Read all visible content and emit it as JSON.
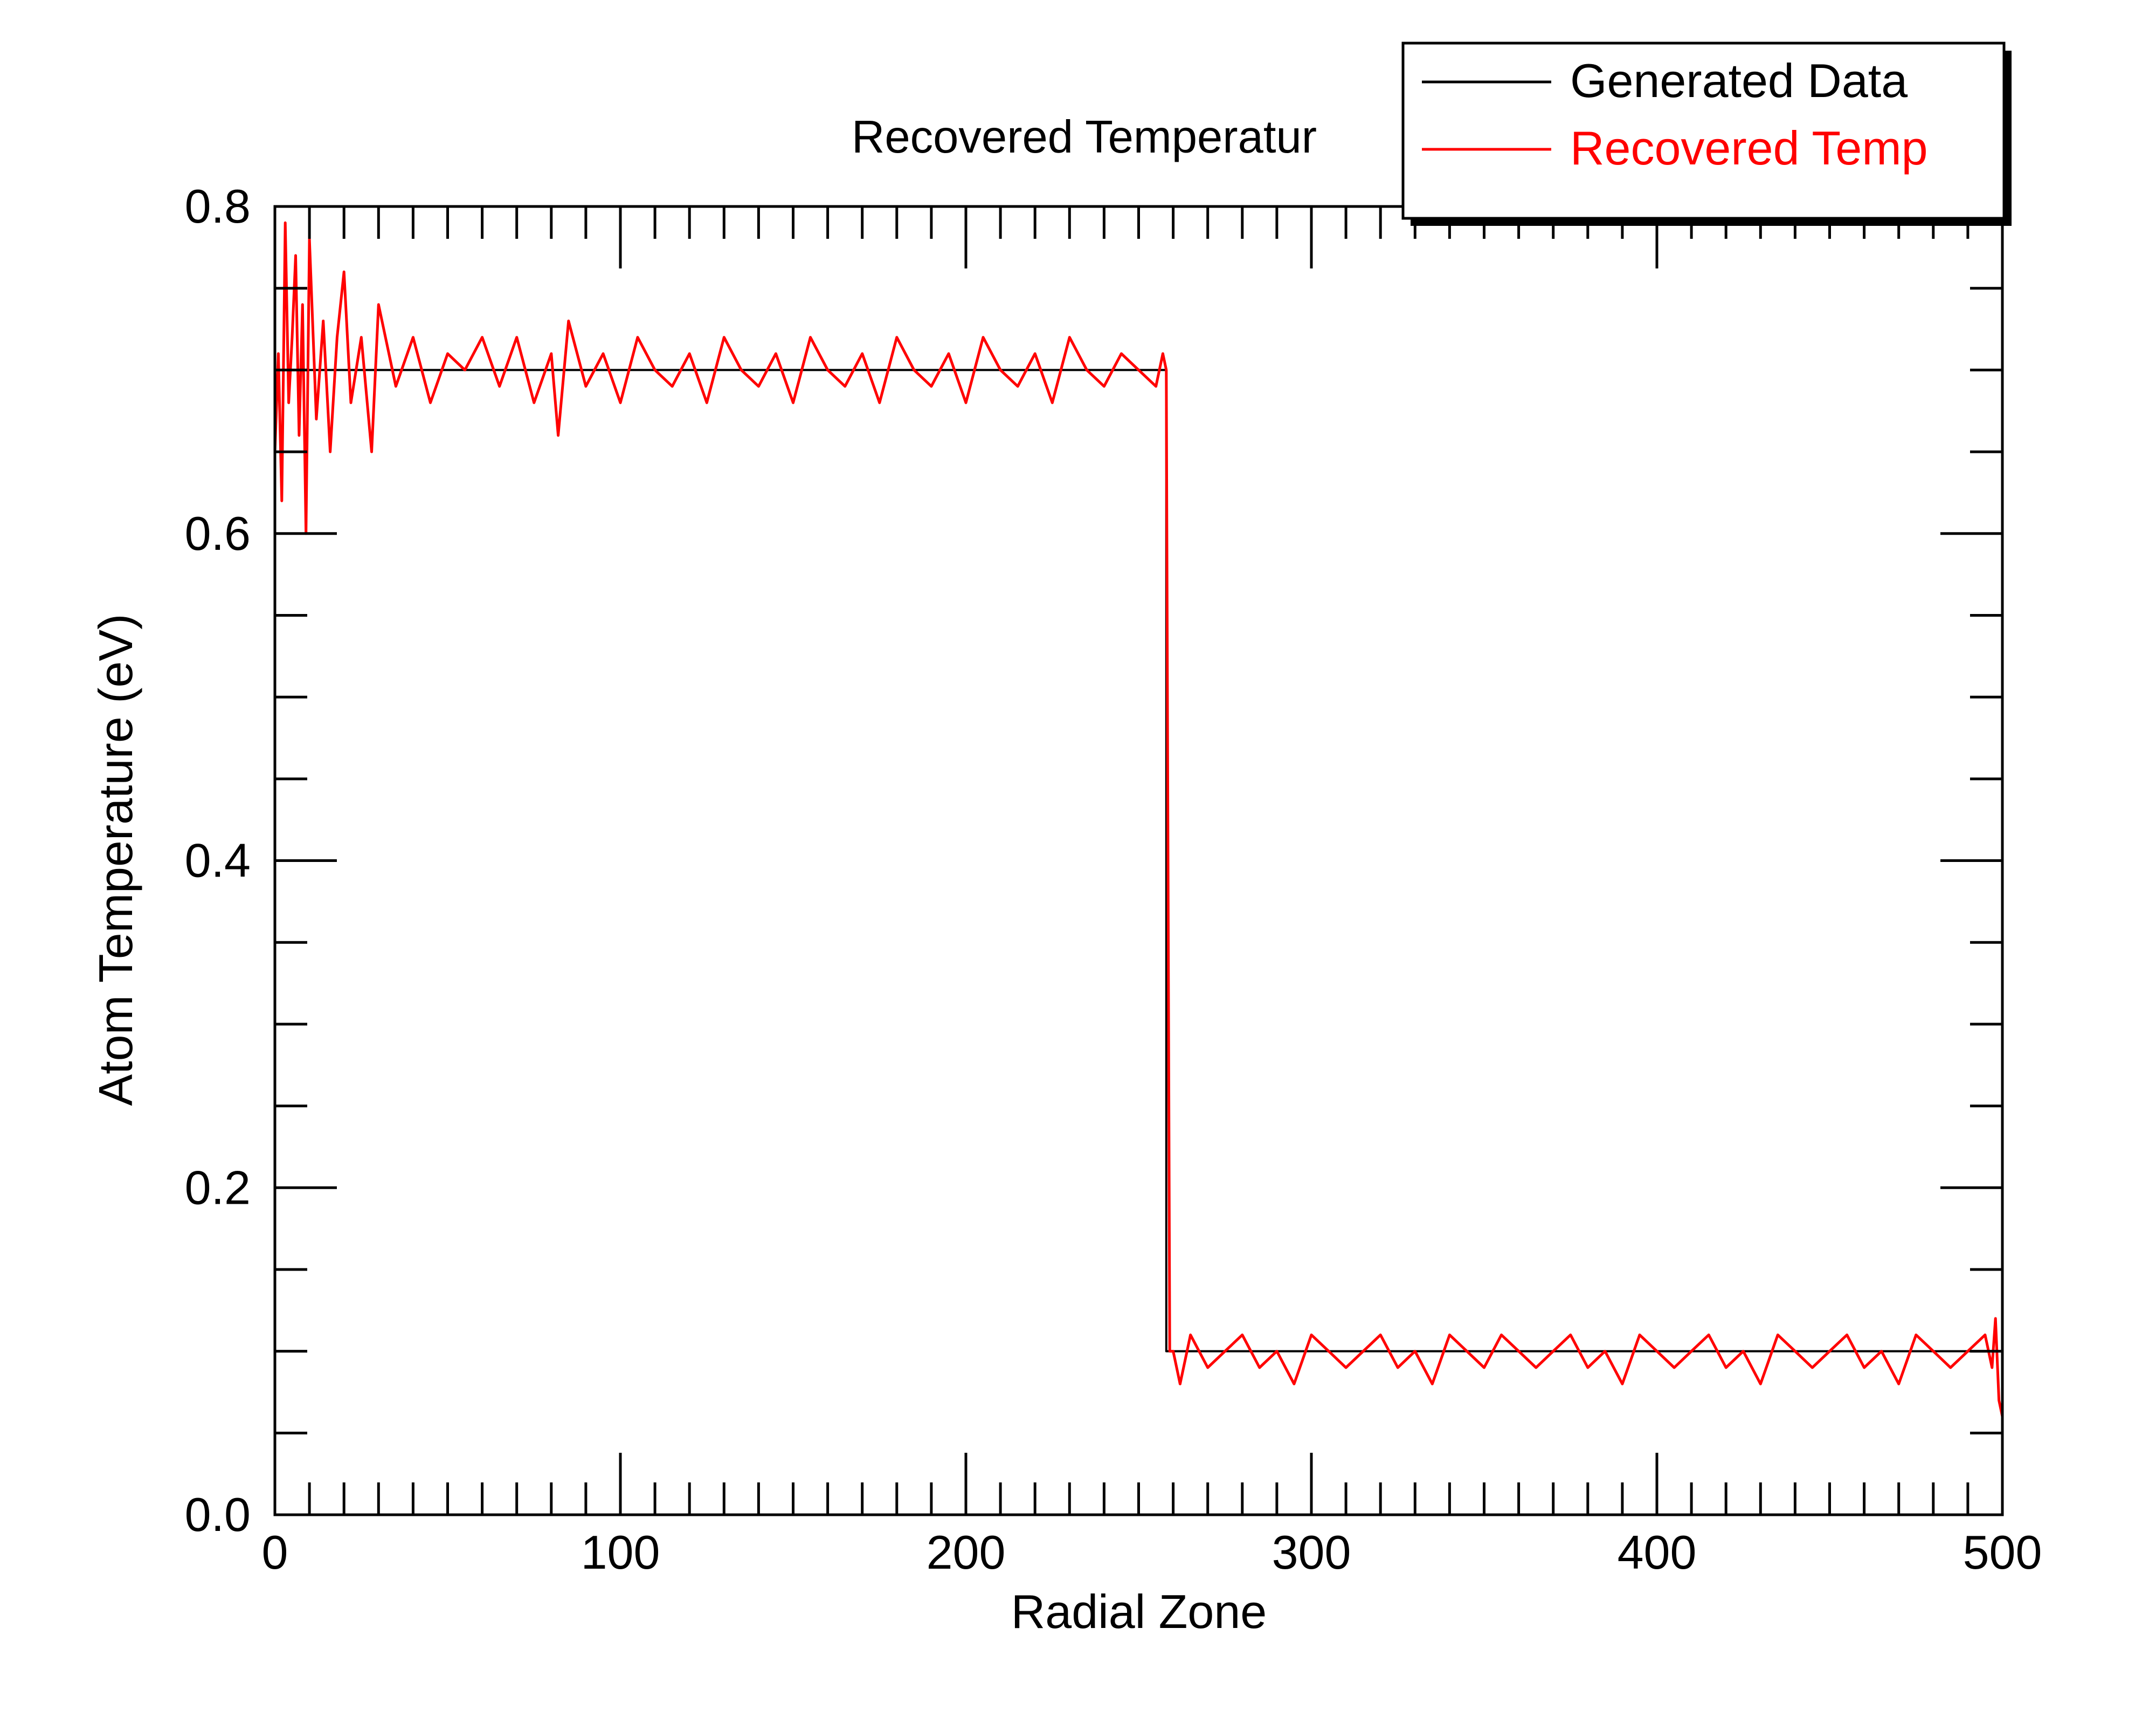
{
  "chart_data": {
    "type": "line",
    "title": "Recovered Temperatur",
    "xlabel": "Radial Zone",
    "ylabel": "Atom Temperature (eV)",
    "xlim": [
      0,
      500
    ],
    "ylim": [
      0.0,
      0.8
    ],
    "x_ticks": [
      0,
      100,
      200,
      300,
      400,
      500
    ],
    "x_tick_labels": [
      "0",
      "100",
      "200",
      "300",
      "400",
      "500"
    ],
    "y_ticks": [
      0.0,
      0.2,
      0.4,
      0.6,
      0.8
    ],
    "y_tick_labels": [
      "0.0",
      "0.2",
      "0.4",
      "0.6",
      "0.8"
    ],
    "grid": false,
    "legend": {
      "placement": "top-right"
    },
    "series": [
      {
        "name": "Generated Data",
        "color": "#000000",
        "x": [
          0,
          258,
          258,
          500
        ],
        "y": [
          0.7,
          0.7,
          0.1,
          0.1
        ]
      },
      {
        "name": "Recovered Temp",
        "color": "#ff0000",
        "x": [
          0,
          1,
          2,
          3,
          4,
          5,
          6,
          7,
          8,
          9,
          10,
          12,
          14,
          16,
          18,
          20,
          22,
          25,
          28,
          30,
          35,
          40,
          45,
          50,
          55,
          60,
          65,
          70,
          75,
          80,
          82,
          85,
          90,
          95,
          100,
          105,
          110,
          115,
          120,
          125,
          130,
          135,
          140,
          145,
          150,
          155,
          160,
          165,
          170,
          175,
          180,
          185,
          190,
          195,
          200,
          205,
          210,
          215,
          220,
          225,
          230,
          235,
          240,
          245,
          250,
          255,
          257,
          258,
          259,
          260,
          262,
          265,
          270,
          275,
          280,
          285,
          290,
          295,
          300,
          305,
          310,
          315,
          320,
          325,
          330,
          335,
          340,
          345,
          350,
          355,
          360,
          365,
          370,
          375,
          380,
          385,
          390,
          395,
          400,
          405,
          410,
          415,
          420,
          425,
          430,
          435,
          440,
          445,
          450,
          455,
          460,
          465,
          470,
          475,
          480,
          485,
          490,
          495,
          497,
          498,
          499,
          500
        ],
        "y": [
          0.65,
          0.71,
          0.62,
          0.79,
          0.68,
          0.72,
          0.77,
          0.66,
          0.74,
          0.6,
          0.78,
          0.67,
          0.73,
          0.65,
          0.72,
          0.76,
          0.68,
          0.72,
          0.65,
          0.74,
          0.69,
          0.72,
          0.68,
          0.71,
          0.7,
          0.72,
          0.69,
          0.72,
          0.68,
          0.71,
          0.66,
          0.73,
          0.69,
          0.71,
          0.68,
          0.72,
          0.7,
          0.69,
          0.71,
          0.68,
          0.72,
          0.7,
          0.69,
          0.71,
          0.68,
          0.72,
          0.7,
          0.69,
          0.71,
          0.68,
          0.72,
          0.7,
          0.69,
          0.71,
          0.68,
          0.72,
          0.7,
          0.69,
          0.71,
          0.68,
          0.72,
          0.7,
          0.69,
          0.71,
          0.7,
          0.69,
          0.71,
          0.7,
          0.1,
          0.1,
          0.08,
          0.11,
          0.09,
          0.1,
          0.11,
          0.09,
          0.1,
          0.08,
          0.11,
          0.1,
          0.09,
          0.1,
          0.11,
          0.09,
          0.1,
          0.08,
          0.11,
          0.1,
          0.09,
          0.11,
          0.1,
          0.09,
          0.1,
          0.11,
          0.09,
          0.1,
          0.08,
          0.11,
          0.1,
          0.09,
          0.1,
          0.11,
          0.09,
          0.1,
          0.08,
          0.11,
          0.1,
          0.09,
          0.1,
          0.11,
          0.09,
          0.1,
          0.08,
          0.11,
          0.1,
          0.09,
          0.1,
          0.11,
          0.09,
          0.12,
          0.07,
          0.06
        ]
      }
    ]
  }
}
